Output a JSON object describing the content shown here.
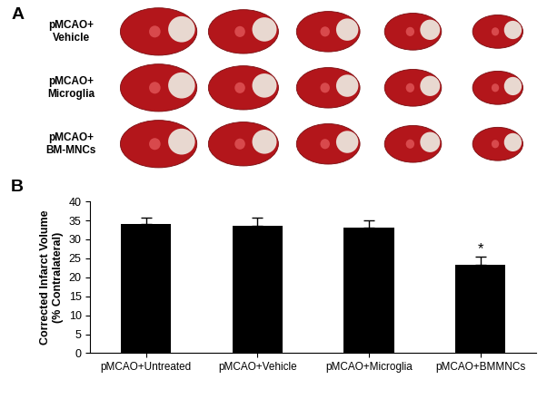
{
  "panel_labels": [
    "A",
    "B"
  ],
  "row_labels": [
    "pMCAO+\nVehicle",
    "pMCAO+\nMicroglia",
    "pMCAO+\nBM-MNCs"
  ],
  "chart_data": {
    "type": "bar",
    "categories": [
      "pMCAO+Untreated",
      "pMCAO+Vehicle",
      "pMCAO+Microglia",
      "pMCAO+BMMNCs"
    ],
    "values": [
      34,
      33.5,
      33,
      23.2
    ],
    "errors": [
      1.8,
      2.3,
      2.0,
      2.2
    ],
    "color": "#000000",
    "y_label": "Corrected Infarct Volume\n(% Contralateral)",
    "ylim": [
      0,
      40
    ],
    "yticks": [
      0,
      5,
      10,
      15,
      20,
      25,
      30,
      35,
      40
    ],
    "grid": false,
    "annotations": [
      {
        "text": "*",
        "category": "pMCAO+BMMNCs"
      }
    ]
  }
}
